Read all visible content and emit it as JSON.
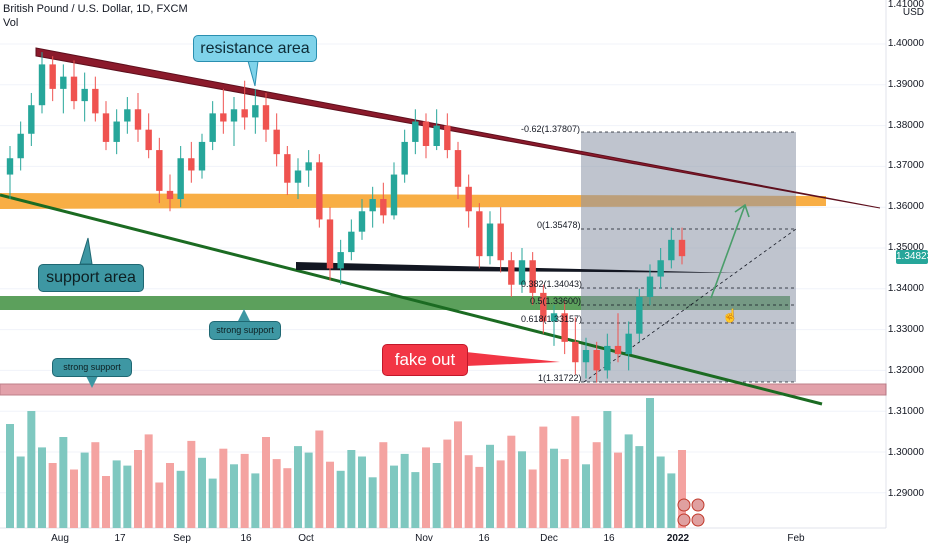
{
  "header": {
    "symbol_line": "British Pound / U.S. Dollar, 1D, FXCM",
    "indicator_label": "Vol"
  },
  "price_axis": {
    "unit": "USD",
    "ticks": [
      "1.41000",
      "1.40000",
      "1.39000",
      "1.38000",
      "1.37000",
      "1.36000",
      "1.35000",
      "1.34000",
      "1.33000",
      "1.32000",
      "1.31000",
      "1.30000",
      "1.29000"
    ],
    "current_price": "1.34823"
  },
  "time_axis": {
    "ticks": [
      "Aug",
      "17",
      "Sep",
      "16",
      "Oct",
      "Nov",
      "16",
      "Dec",
      "16",
      "2022",
      "Feb"
    ]
  },
  "annotations": {
    "resistance": "resistance area",
    "support": "support area",
    "strong_support_1": "strong support",
    "strong_support_2": "strong support",
    "fake_out": "fake out"
  },
  "fib_levels": [
    "-0.62(1.37807)",
    "0(1.35478)",
    "0.382(1.34043)",
    "0.5(1.33600)",
    "0.618(1.33157)",
    "1(1.31722)"
  ],
  "colors": {
    "up": "#26a69a",
    "down": "#ef5350",
    "resistance_line": "#8b1a2b",
    "support_line": "#1b6b22",
    "orange_band": "#f7a531",
    "green_band": "#3f8f3f",
    "red_band": "#cc5566",
    "fib_box": "#8a94a6"
  },
  "chart_data": {
    "type": "candlestick",
    "title": "British Pound / U.S. Dollar, 1D, FXCM",
    "ylim": [
      1.281,
      1.412
    ],
    "candles": [
      {
        "o": 1.368,
        "h": 1.375,
        "l": 1.362,
        "c": 1.372
      },
      {
        "o": 1.372,
        "h": 1.381,
        "l": 1.369,
        "c": 1.378
      },
      {
        "o": 1.378,
        "h": 1.388,
        "l": 1.375,
        "c": 1.385
      },
      {
        "o": 1.385,
        "h": 1.398,
        "l": 1.383,
        "c": 1.395
      },
      {
        "o": 1.395,
        "h": 1.397,
        "l": 1.386,
        "c": 1.389
      },
      {
        "o": 1.389,
        "h": 1.395,
        "l": 1.383,
        "c": 1.392
      },
      {
        "o": 1.392,
        "h": 1.396,
        "l": 1.384,
        "c": 1.386
      },
      {
        "o": 1.386,
        "h": 1.393,
        "l": 1.381,
        "c": 1.389
      },
      {
        "o": 1.389,
        "h": 1.392,
        "l": 1.381,
        "c": 1.383
      },
      {
        "o": 1.383,
        "h": 1.386,
        "l": 1.374,
        "c": 1.376
      },
      {
        "o": 1.376,
        "h": 1.384,
        "l": 1.373,
        "c": 1.381
      },
      {
        "o": 1.381,
        "h": 1.387,
        "l": 1.378,
        "c": 1.384
      },
      {
        "o": 1.384,
        "h": 1.388,
        "l": 1.376,
        "c": 1.379
      },
      {
        "o": 1.379,
        "h": 1.383,
        "l": 1.372,
        "c": 1.374
      },
      {
        "o": 1.374,
        "h": 1.377,
        "l": 1.361,
        "c": 1.364
      },
      {
        "o": 1.364,
        "h": 1.368,
        "l": 1.359,
        "c": 1.362
      },
      {
        "o": 1.362,
        "h": 1.375,
        "l": 1.36,
        "c": 1.372
      },
      {
        "o": 1.372,
        "h": 1.376,
        "l": 1.366,
        "c": 1.369
      },
      {
        "o": 1.369,
        "h": 1.378,
        "l": 1.367,
        "c": 1.376
      },
      {
        "o": 1.376,
        "h": 1.386,
        "l": 1.374,
        "c": 1.383
      },
      {
        "o": 1.383,
        "h": 1.389,
        "l": 1.378,
        "c": 1.381
      },
      {
        "o": 1.381,
        "h": 1.387,
        "l": 1.375,
        "c": 1.384
      },
      {
        "o": 1.384,
        "h": 1.391,
        "l": 1.379,
        "c": 1.382
      },
      {
        "o": 1.382,
        "h": 1.389,
        "l": 1.378,
        "c": 1.385
      },
      {
        "o": 1.385,
        "h": 1.388,
        "l": 1.376,
        "c": 1.379
      },
      {
        "o": 1.379,
        "h": 1.383,
        "l": 1.37,
        "c": 1.373
      },
      {
        "o": 1.373,
        "h": 1.375,
        "l": 1.363,
        "c": 1.366
      },
      {
        "o": 1.366,
        "h": 1.372,
        "l": 1.362,
        "c": 1.369
      },
      {
        "o": 1.369,
        "h": 1.374,
        "l": 1.365,
        "c": 1.371
      },
      {
        "o": 1.371,
        "h": 1.373,
        "l": 1.355,
        "c": 1.357
      },
      {
        "o": 1.357,
        "h": 1.36,
        "l": 1.342,
        "c": 1.345
      },
      {
        "o": 1.345,
        "h": 1.352,
        "l": 1.341,
        "c": 1.349
      },
      {
        "o": 1.349,
        "h": 1.357,
        "l": 1.347,
        "c": 1.354
      },
      {
        "o": 1.354,
        "h": 1.362,
        "l": 1.352,
        "c": 1.359
      },
      {
        "o": 1.359,
        "h": 1.365,
        "l": 1.355,
        "c": 1.362
      },
      {
        "o": 1.362,
        "h": 1.366,
        "l": 1.356,
        "c": 1.358
      },
      {
        "o": 1.358,
        "h": 1.371,
        "l": 1.357,
        "c": 1.368
      },
      {
        "o": 1.368,
        "h": 1.379,
        "l": 1.366,
        "c": 1.376
      },
      {
        "o": 1.376,
        "h": 1.384,
        "l": 1.373,
        "c": 1.381
      },
      {
        "o": 1.381,
        "h": 1.383,
        "l": 1.372,
        "c": 1.375
      },
      {
        "o": 1.375,
        "h": 1.384,
        "l": 1.374,
        "c": 1.38
      },
      {
        "o": 1.38,
        "h": 1.383,
        "l": 1.372,
        "c": 1.374
      },
      {
        "o": 1.374,
        "h": 1.376,
        "l": 1.362,
        "c": 1.365
      },
      {
        "o": 1.365,
        "h": 1.368,
        "l": 1.355,
        "c": 1.359
      },
      {
        "o": 1.359,
        "h": 1.361,
        "l": 1.345,
        "c": 1.348
      },
      {
        "o": 1.348,
        "h": 1.359,
        "l": 1.346,
        "c": 1.356
      },
      {
        "o": 1.356,
        "h": 1.36,
        "l": 1.344,
        "c": 1.347
      },
      {
        "o": 1.347,
        "h": 1.349,
        "l": 1.338,
        "c": 1.341
      },
      {
        "o": 1.341,
        "h": 1.35,
        "l": 1.339,
        "c": 1.347
      },
      {
        "o": 1.347,
        "h": 1.349,
        "l": 1.336,
        "c": 1.339
      },
      {
        "o": 1.339,
        "h": 1.341,
        "l": 1.329,
        "c": 1.332
      },
      {
        "o": 1.332,
        "h": 1.336,
        "l": 1.326,
        "c": 1.334
      },
      {
        "o": 1.334,
        "h": 1.337,
        "l": 1.324,
        "c": 1.327
      },
      {
        "o": 1.327,
        "h": 1.333,
        "l": 1.319,
        "c": 1.322
      },
      {
        "o": 1.322,
        "h": 1.328,
        "l": 1.318,
        "c": 1.325
      },
      {
        "o": 1.325,
        "h": 1.327,
        "l": 1.317,
        "c": 1.32
      },
      {
        "o": 1.32,
        "h": 1.329,
        "l": 1.318,
        "c": 1.326
      },
      {
        "o": 1.326,
        "h": 1.334,
        "l": 1.322,
        "c": 1.324
      },
      {
        "o": 1.324,
        "h": 1.332,
        "l": 1.32,
        "c": 1.329
      },
      {
        "o": 1.329,
        "h": 1.34,
        "l": 1.327,
        "c": 1.338
      },
      {
        "o": 1.338,
        "h": 1.346,
        "l": 1.336,
        "c": 1.343
      },
      {
        "o": 1.343,
        "h": 1.35,
        "l": 1.34,
        "c": 1.347
      },
      {
        "o": 1.347,
        "h": 1.355,
        "l": 1.345,
        "c": 1.352
      },
      {
        "o": 1.352,
        "h": 1.355,
        "l": 1.346,
        "c": 1.348
      }
    ],
    "volume": [
      0.8,
      0.55,
      0.9,
      0.62,
      0.5,
      0.7,
      0.45,
      0.58,
      0.66,
      0.4,
      0.52,
      0.48,
      0.6,
      0.72,
      0.35,
      0.5,
      0.44,
      0.67,
      0.54,
      0.38,
      0.61,
      0.49,
      0.57,
      0.42,
      0.7,
      0.53,
      0.46,
      0.63,
      0.58,
      0.75,
      0.51,
      0.44,
      0.6,
      0.55,
      0.39,
      0.66,
      0.48,
      0.57,
      0.43,
      0.62,
      0.5,
      0.68,
      0.82,
      0.56,
      0.47,
      0.64,
      0.52,
      0.71,
      0.59,
      0.45,
      0.78,
      0.61,
      0.53,
      0.86,
      0.49,
      0.66,
      0.9,
      0.58,
      0.72,
      0.63,
      1.0,
      0.55,
      0.42,
      0.6
    ]
  }
}
